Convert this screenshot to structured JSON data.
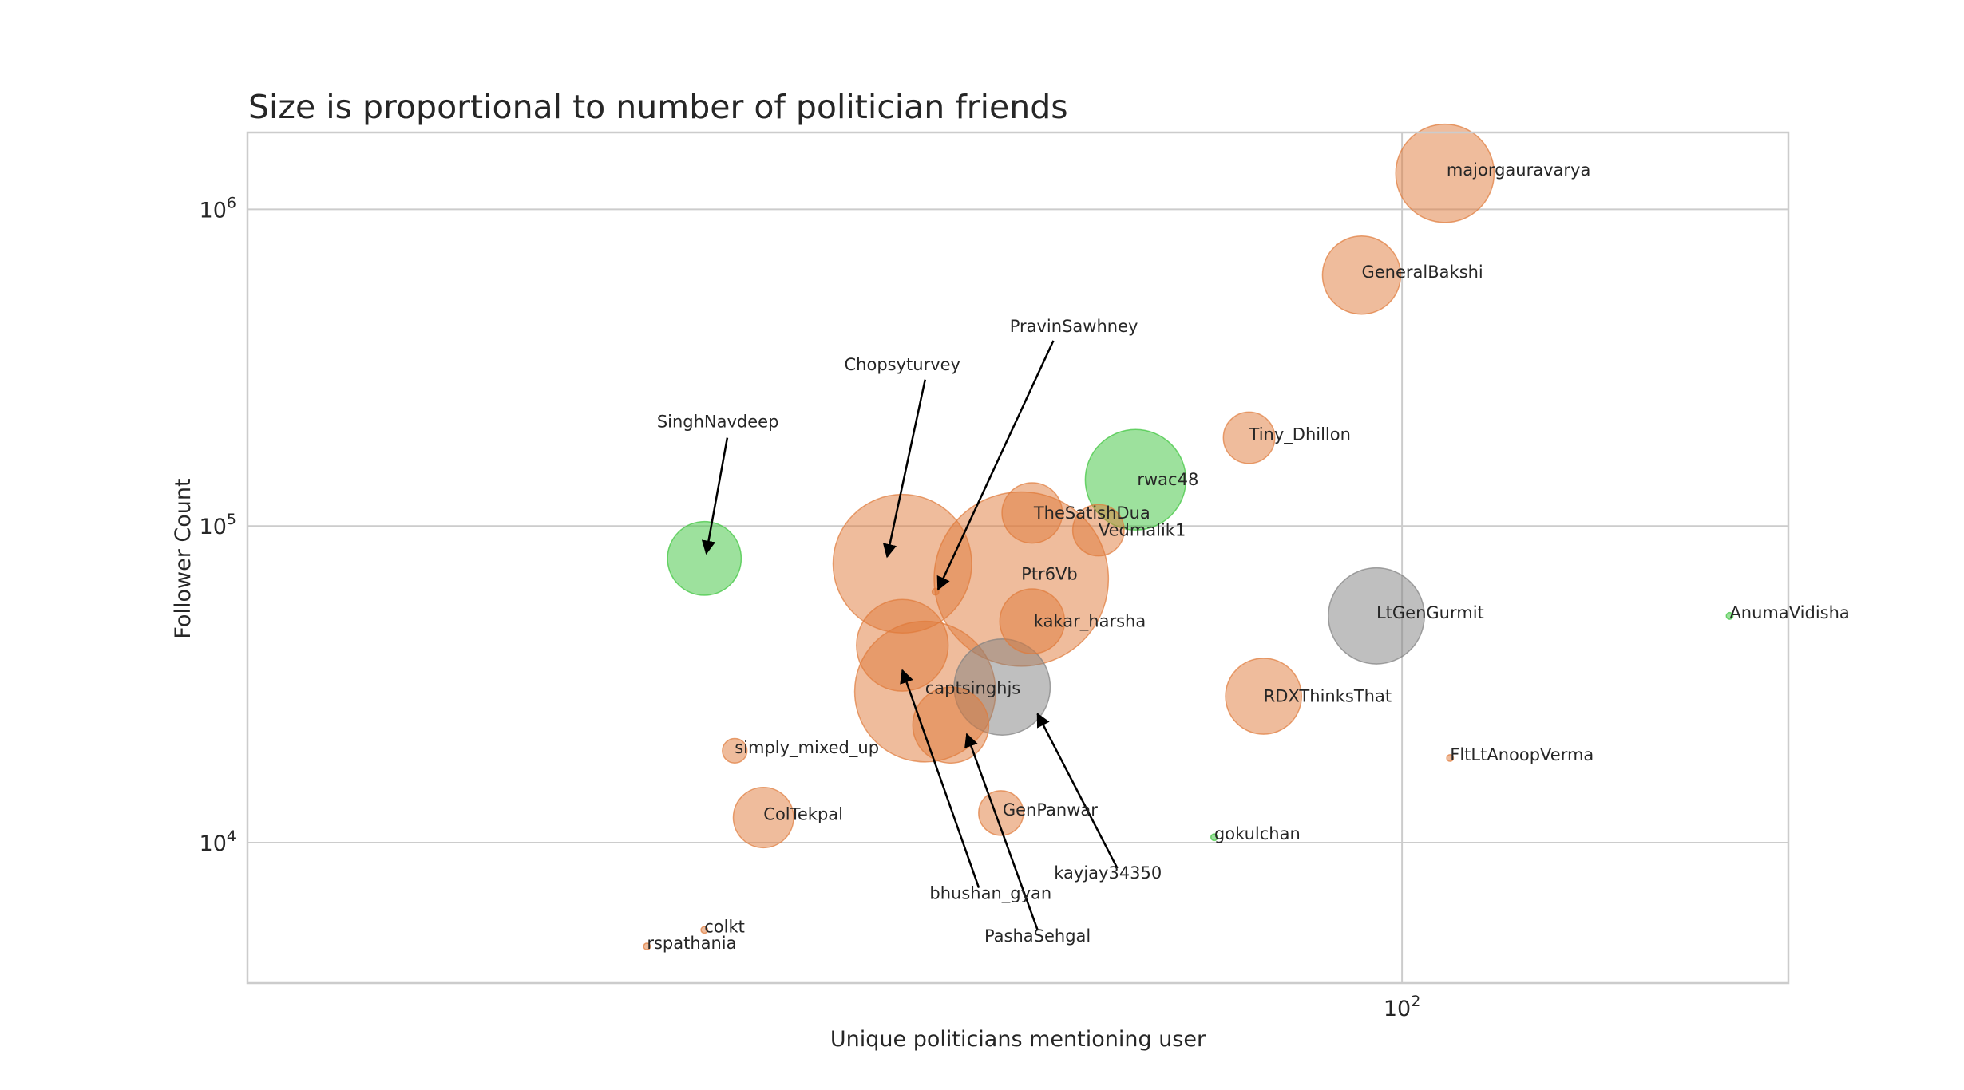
{
  "chart_data": {
    "type": "scatter",
    "title": "Size is proportional to number of politician friends",
    "xlabel": "Unique politicians mentioning user",
    "ylabel": "Follower Count",
    "xscale": "log",
    "yscale": "log",
    "xlim": [
      12.6,
      200
    ],
    "ylim": [
      3600,
      1750000
    ],
    "grid": true,
    "xticks": [
      {
        "value": 100,
        "base": "10",
        "exp": "2"
      }
    ],
    "yticks": [
      {
        "value": 10000,
        "base": "10",
        "exp": "4"
      },
      {
        "value": 100000,
        "base": "10",
        "exp": "5"
      },
      {
        "value": 1000000,
        "base": "10",
        "exp": "6"
      }
    ],
    "colors": {
      "orange": "#e07a3a",
      "green": "#3cc43c",
      "gray": "#808080"
    },
    "points": [
      {
        "name": "majorgauravarya",
        "x": 108,
        "y": 1300000,
        "size": 44,
        "color": "orange",
        "label": {
          "offset": [
            2,
            -4
          ]
        }
      },
      {
        "name": "GeneralBakshi",
        "x": 93,
        "y": 620000,
        "size": 35,
        "color": "orange",
        "label": {
          "offset": [
            0,
            -4
          ]
        }
      },
      {
        "name": "Tiny_Dhillon",
        "x": 76,
        "y": 190000,
        "size": 23,
        "color": "orange",
        "label": {
          "offset": [
            0,
            -4
          ]
        }
      },
      {
        "name": "rwac48",
        "x": 62,
        "y": 140000,
        "size": 45,
        "color": "green",
        "label": {
          "offset": [
            2,
            0
          ]
        }
      },
      {
        "name": "Vedmalik1",
        "x": 58,
        "y": 97000,
        "size": 23,
        "color": "orange",
        "label": {
          "offset": [
            0,
            0
          ]
        }
      },
      {
        "name": "TheSatishDua",
        "x": 51.5,
        "y": 110000,
        "size": 27,
        "color": "orange",
        "label": {
          "offset": [
            2,
            0
          ]
        }
      },
      {
        "name": "Ptr6Vb",
        "x": 50.5,
        "y": 68000,
        "size": 78,
        "color": "orange",
        "label": {
          "offset": [
            0,
            -6
          ]
        }
      },
      {
        "name": "kakar_harsha",
        "x": 51.5,
        "y": 50000,
        "size": 29,
        "color": "orange",
        "label": {
          "offset": [
            2,
            0
          ]
        }
      },
      {
        "name": "Chopsyturvey",
        "x": 40.8,
        "y": 76000,
        "size": 62,
        "color": "orange",
        "label": {
          "text_pos": [
            40.8,
            310000
          ],
          "arrow_from": [
            42.5,
            290000
          ],
          "arrow_to": [
            39.7,
            80000
          ]
        }
      },
      {
        "name": "PravinSawhney",
        "x": 43.3,
        "y": 62000,
        "size": 3,
        "color": "orange",
        "label": {
          "text_pos": [
            55.5,
            410000
          ],
          "arrow_from": [
            53.5,
            385000
          ],
          "arrow_to": [
            43.5,
            63000
          ]
        }
      },
      {
        "name": "captsinghjs",
        "x": 42.5,
        "y": 30000,
        "size": 63,
        "color": "orange",
        "label": {
          "offset": [
            0,
            -4
          ]
        }
      },
      {
        "name": "bhushan_gyan",
        "x": 40.8,
        "y": 42000,
        "size": 41,
        "color": "orange",
        "label": {
          "text_pos": [
            47.8,
            6650
          ],
          "arrow_from": [
            46.8,
            7200
          ],
          "arrow_to": [
            40.8,
            35000
          ]
        }
      },
      {
        "name": "PashaSehgal",
        "x": 44.5,
        "y": 23500,
        "size": 34,
        "color": "orange",
        "label": {
          "text_pos": [
            52,
            4870
          ],
          "arrow_from": [
            52,
            5300
          ],
          "arrow_to": [
            45.8,
            22000
          ]
        }
      },
      {
        "name": "kayjay34350",
        "x": 48.8,
        "y": 31000,
        "size": 43,
        "color": "gray",
        "label": {
          "text_pos": [
            59,
            7700
          ],
          "arrow_from": [
            60,
            8300
          ],
          "arrow_to": [
            52,
            25500
          ]
        }
      },
      {
        "name": "SinghNavdeep",
        "x": 28.6,
        "y": 79000,
        "size": 33,
        "color": "green",
        "label": {
          "text_pos": [
            29.3,
            205000
          ],
          "arrow_from": [
            29.8,
            190000
          ],
          "arrow_to": [
            28.7,
            82000
          ]
        }
      },
      {
        "name": "simply_mixed_up",
        "x": 30.2,
        "y": 19500,
        "size": 11,
        "color": "orange",
        "label": {
          "offset": [
            0,
            -4
          ]
        }
      },
      {
        "name": "ColTekpal",
        "x": 31.8,
        "y": 12000,
        "size": 27,
        "color": "orange",
        "label": {
          "offset": [
            0,
            -4
          ]
        }
      },
      {
        "name": "GenPanwar",
        "x": 48.7,
        "y": 12400,
        "size": 20,
        "color": "orange",
        "label": {
          "offset": [
            2,
            -4
          ]
        }
      },
      {
        "name": "gokulchan",
        "x": 71.4,
        "y": 10400,
        "size": 3,
        "color": "green",
        "label": {
          "offset": [
            0,
            -4
          ]
        }
      },
      {
        "name": "LtGenGurmit",
        "x": 95.5,
        "y": 52000,
        "size": 43,
        "color": "gray",
        "label": {
          "offset": [
            0,
            -4
          ]
        }
      },
      {
        "name": "RDXThinksThat",
        "x": 78,
        "y": 29000,
        "size": 34,
        "color": "orange",
        "label": {
          "offset": [
            0,
            0
          ]
        }
      },
      {
        "name": "FltLtAnoopVerma",
        "x": 109,
        "y": 18500,
        "size": 3,
        "color": "orange",
        "label": {
          "offset": [
            0,
            -4
          ]
        }
      },
      {
        "name": "AnumaVidisha",
        "x": 180,
        "y": 52000,
        "size": 3,
        "color": "green",
        "label": {
          "offset": [
            0,
            -4
          ]
        }
      },
      {
        "name": "colkt",
        "x": 28.6,
        "y": 5300,
        "size": 3,
        "color": "orange",
        "label": {
          "offset": [
            0,
            -4
          ]
        }
      },
      {
        "name": "rspathania",
        "x": 25.8,
        "y": 4700,
        "size": 3,
        "color": "orange",
        "label": {
          "offset": [
            0,
            -4
          ]
        }
      }
    ]
  }
}
